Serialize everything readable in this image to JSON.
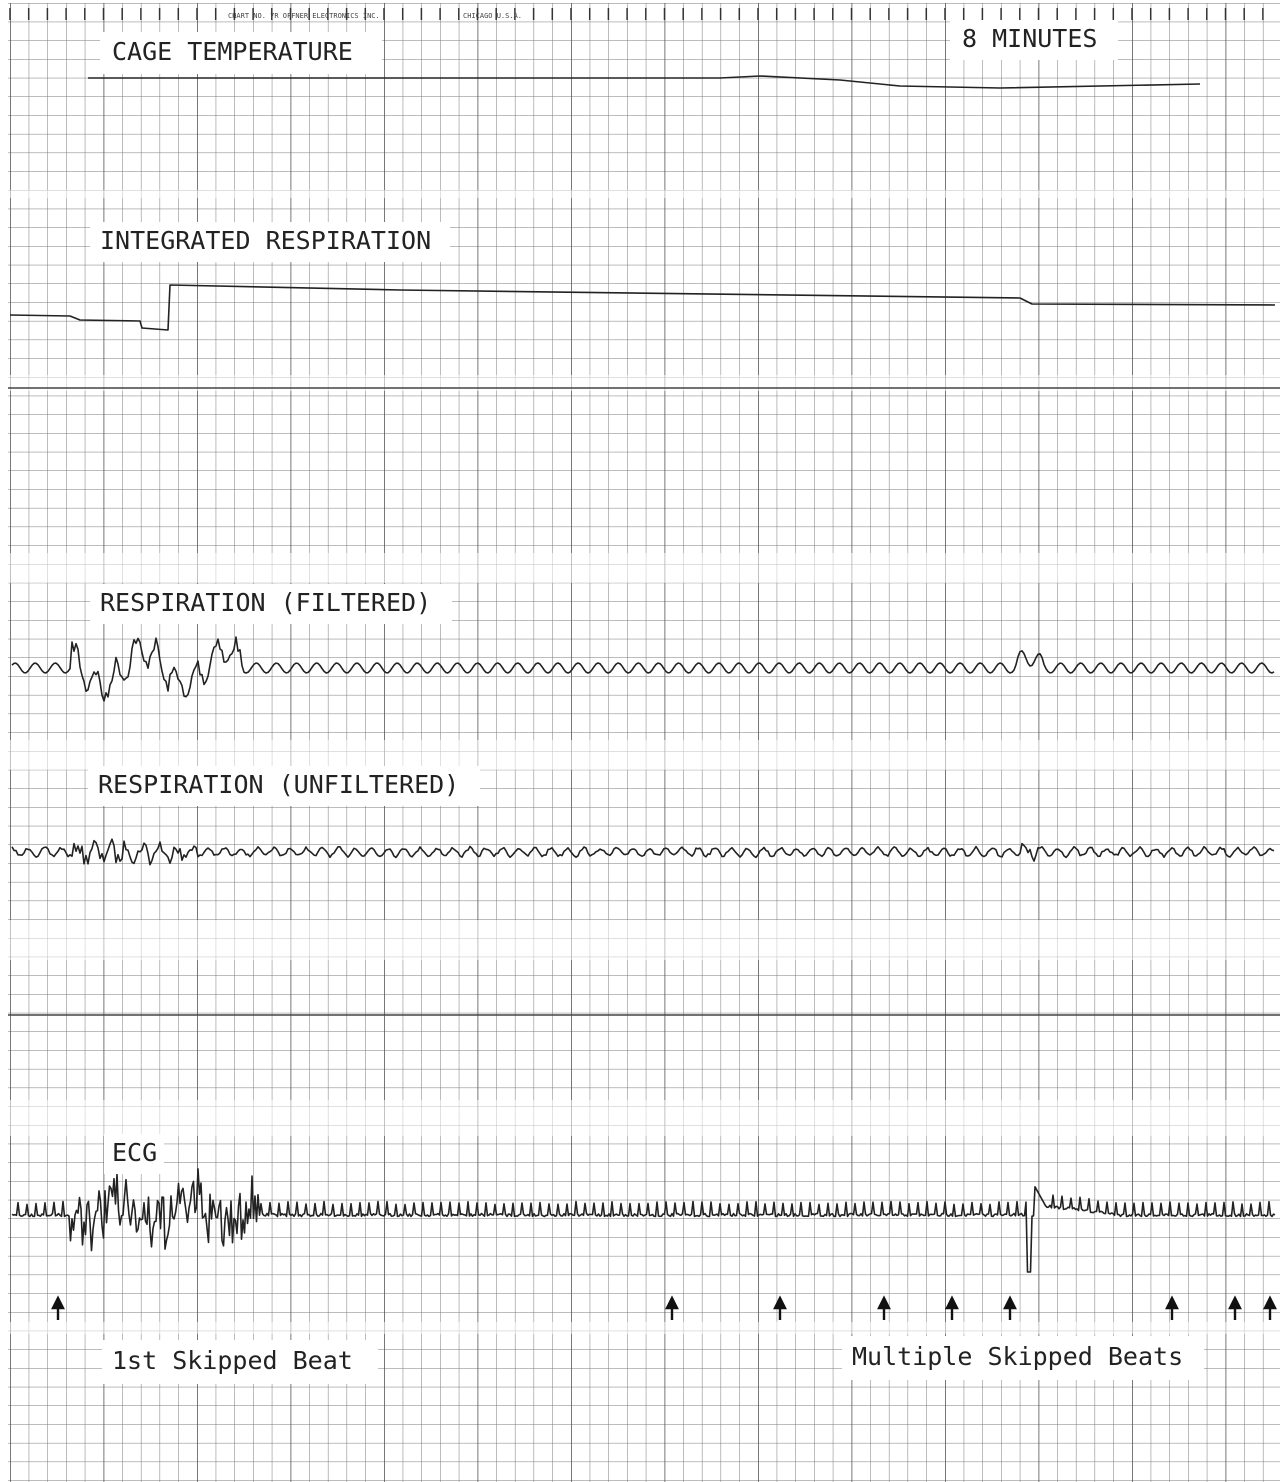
{
  "header": {
    "chart_no": "CHART NO. 7R OFFNER ELECTRONICS INC.",
    "place": "CHICAGO U.S.A.",
    "duration": "8 MINUTES"
  },
  "channels": [
    {
      "label": "CAGE TEMPERATURE"
    },
    {
      "label": "INTEGRATED RESPIRATION"
    },
    {
      "label": "RESPIRATION (FILTERED)"
    },
    {
      "label": "RESPIRATION (UNFILTERED)"
    },
    {
      "label": "ECG"
    }
  ],
  "annotations": {
    "first": "1st Skipped Beat",
    "multiple": "Multiple Skipped Beats"
  }
}
